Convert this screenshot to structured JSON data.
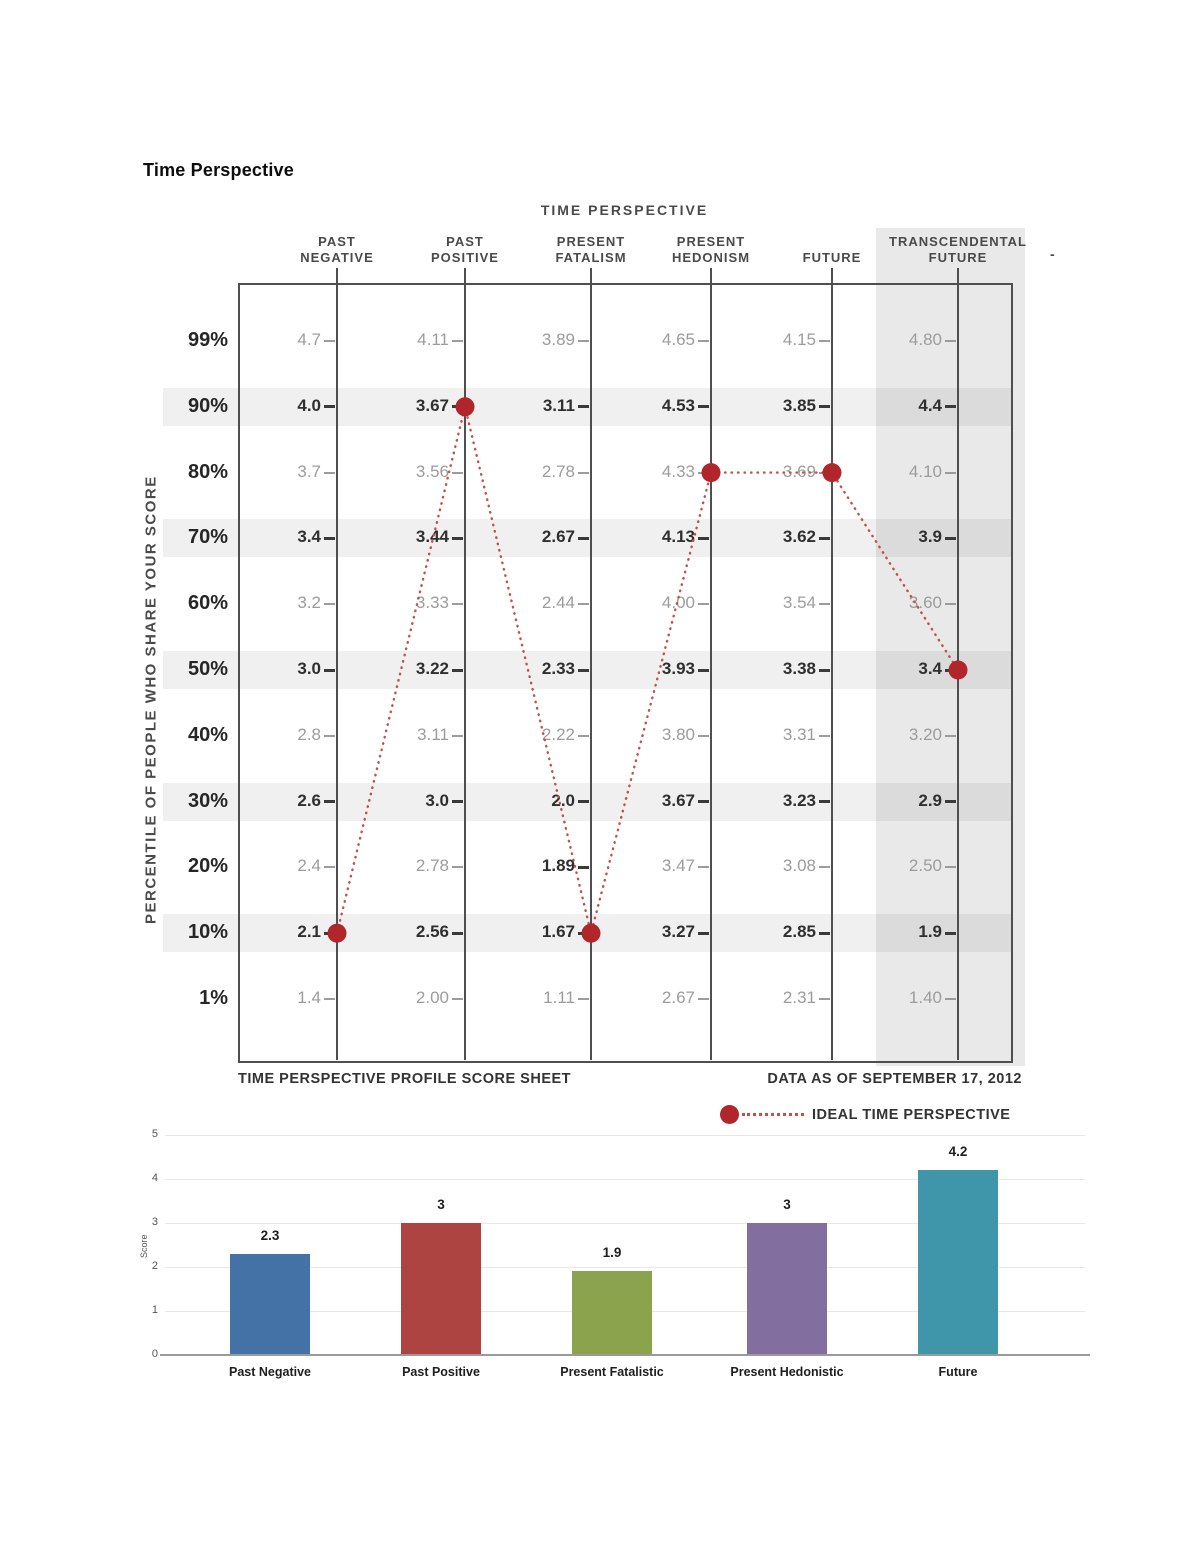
{
  "page": {
    "title": "Time Perspective"
  },
  "chart_data": [
    {
      "type": "table",
      "title": "TIME PERSPECTIVE",
      "ylabel": "PERCENTILE OF PEOPLE WHO SHARE YOUR SCORE",
      "footer_left": "TIME PERSPECTIVE PROFILE SCORE SHEET",
      "footer_right": "DATA AS OF SEPTEMBER 17, 2012",
      "legend": "IDEAL TIME PERSPECTIVE",
      "corner_mark": "-",
      "accent_color": "#b1262b",
      "dotted_line_color": "#c4504c",
      "highlighted_column": "TRANSCENDENTAL FUTURE",
      "columns": [
        {
          "name": "PAST NEGATIVE",
          "lines": [
            "PAST",
            "NEGATIVE"
          ]
        },
        {
          "name": "PAST POSITIVE",
          "lines": [
            "PAST",
            "POSITIVE"
          ]
        },
        {
          "name": "PRESENT FATALISM",
          "lines": [
            "PRESENT",
            "FATALISM"
          ]
        },
        {
          "name": "PRESENT HEDONISM",
          "lines": [
            "PRESENT",
            "HEDONISM"
          ]
        },
        {
          "name": "FUTURE",
          "lines": [
            "FUTURE"
          ]
        },
        {
          "name": "TRANSCENDENTAL FUTURE",
          "lines": [
            "TRANSCENDENTAL",
            "FUTURE"
          ]
        }
      ],
      "rows": [
        {
          "percentile": "99%",
          "values": [
            "4.7",
            "4.11",
            "3.89",
            "4.65",
            "4.15",
            "4.80"
          ],
          "emphasized": false
        },
        {
          "percentile": "90%",
          "values": [
            "4.0",
            "3.67",
            "3.11",
            "4.53",
            "3.85",
            "4.4"
          ],
          "emphasized": true
        },
        {
          "percentile": "80%",
          "values": [
            "3.7",
            "3.56",
            "2.78",
            "4.33",
            "3.69",
            "4.10"
          ],
          "emphasized": false
        },
        {
          "percentile": "70%",
          "values": [
            "3.4",
            "3.44",
            "2.67",
            "4.13",
            "3.62",
            "3.9"
          ],
          "emphasized": true
        },
        {
          "percentile": "60%",
          "values": [
            "3.2",
            "3.33",
            "2.44",
            "4.00",
            "3.54",
            "3.60"
          ],
          "emphasized": false
        },
        {
          "percentile": "50%",
          "values": [
            "3.0",
            "3.22",
            "2.33",
            "3.93",
            "3.38",
            "3.4"
          ],
          "emphasized": true
        },
        {
          "percentile": "40%",
          "values": [
            "2.8",
            "3.11",
            "2.22",
            "3.80",
            "3.31",
            "3.20"
          ],
          "emphasized": false
        },
        {
          "percentile": "30%",
          "values": [
            "2.6",
            "3.0",
            "2.0",
            "3.67",
            "3.23",
            "2.9"
          ],
          "emphasized": true
        },
        {
          "percentile": "20%",
          "values": [
            "2.4",
            "2.78",
            "1.89",
            "3.47",
            "3.08",
            "2.50"
          ],
          "emphasized": false,
          "emphasized_cells": [
            2
          ]
        },
        {
          "percentile": "10%",
          "values": [
            "2.1",
            "2.56",
            "1.67",
            "3.27",
            "2.85",
            "1.9"
          ],
          "emphasized": true
        },
        {
          "percentile": "1%",
          "values": [
            "1.4",
            "2.00",
            "1.11",
            "2.67",
            "2.31",
            "1.40"
          ],
          "emphasized": false
        }
      ],
      "ideal_time_perspective": [
        {
          "column": "PAST NEGATIVE",
          "percentile": "10%",
          "score": "2.1"
        },
        {
          "column": "PAST POSITIVE",
          "percentile": "90%",
          "score": "3.67"
        },
        {
          "column": "PRESENT FATALISM",
          "percentile": "10%",
          "score": "1.67"
        },
        {
          "column": "PRESENT HEDONISM",
          "percentile": "80%",
          "score": "4.33"
        },
        {
          "column": "FUTURE",
          "percentile": "80%",
          "score": "3.69"
        },
        {
          "column": "TRANSCENDENTAL FUTURE",
          "percentile": "50%",
          "score": "3.4"
        }
      ]
    },
    {
      "type": "bar",
      "categories": [
        "Past Negative",
        "Past Positive",
        "Present Fatalistic",
        "Present Hedonistic",
        "Future"
      ],
      "values": [
        2.3,
        3,
        1.9,
        3,
        4.2
      ],
      "bar_labels": [
        "2.3",
        "3",
        "1.9",
        "3",
        "4.2"
      ],
      "ylabel": "Score",
      "ylim": [
        0,
        5
      ],
      "yticks": [
        0,
        1,
        2,
        3,
        4,
        5
      ],
      "grid": true,
      "legend_position": "none",
      "colors": [
        "#4472a6",
        "#ae4442",
        "#8ba34d",
        "#826f9f",
        "#3f96ab"
      ]
    }
  ]
}
